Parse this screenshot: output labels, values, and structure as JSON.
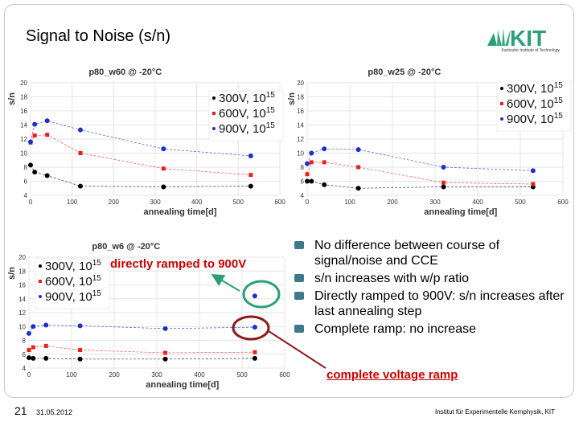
{
  "slide": {
    "title": "Signal to Noise (s/n)",
    "logo_text": "KIT",
    "logo_subtitle": "Karlsruhe Institute of Technology",
    "slide_number": "21",
    "date": "31.05.2012",
    "institute": "Institut für Experimentelle Kernphysik, KIT",
    "ramp_note": "directly ramped to 900V",
    "complete_note": "complete voltage ramp",
    "bullets": [
      "No difference between course of signal/noise and CCE",
      "s/n increases with w/p ratio",
      "Directly ramped to 900V: s/n increases after last annealing step",
      "Complete ramp: no increase"
    ]
  },
  "colors": {
    "accent": "#3c7a89",
    "highlight": "#cc0000",
    "circle_green": "#2aa079",
    "circle_darkred": "#8b1a1a",
    "series_300": "#000000",
    "series_600": "#e8201a",
    "series_900": "#1c2fc8"
  },
  "chart_data": [
    {
      "type": "line",
      "title": "p80_w60 @ -20°C",
      "xlabel": "annealing time[d]",
      "ylabel": "s/n",
      "xlim": [
        0,
        600
      ],
      "ylim": [
        4,
        20
      ],
      "xticks": [
        0,
        100,
        200,
        300,
        400,
        500,
        600
      ],
      "yticks": [
        4,
        6,
        8,
        10,
        12,
        14,
        16,
        18,
        20
      ],
      "legend_position": "top-right",
      "series": [
        {
          "name": "300V, 10",
          "sup": "15",
          "color_key": "series_300",
          "x": [
            0,
            10,
            40,
            120,
            320,
            530
          ],
          "y": [
            8.3,
            7.3,
            6.8,
            5.3,
            5.2,
            5.3
          ]
        },
        {
          "name": "600V, 10",
          "sup": "15",
          "color_key": "series_600",
          "x": [
            0,
            10,
            40,
            120,
            320,
            530
          ],
          "y": [
            11.5,
            12.5,
            12.6,
            10.0,
            7.8,
            6.9
          ]
        },
        {
          "name": "900V, 10",
          "sup": "15",
          "color_key": "series_900",
          "x": [
            0,
            10,
            40,
            120,
            320,
            530
          ],
          "y": [
            11.6,
            14.1,
            14.6,
            13.3,
            10.6,
            9.6
          ]
        }
      ]
    },
    {
      "type": "line",
      "title": "p80_w25 @ -20°C",
      "xlabel": "annealing time[d]",
      "ylabel": "s/n",
      "xlim": [
        0,
        600
      ],
      "ylim": [
        4,
        20
      ],
      "xticks": [
        0,
        100,
        200,
        300,
        400,
        500,
        600
      ],
      "yticks": [
        4,
        6,
        8,
        10,
        12,
        14,
        16,
        18,
        20
      ],
      "legend_position": "top-right",
      "series": [
        {
          "name": "300V, 10",
          "sup": "15",
          "color_key": "series_300",
          "x": [
            0,
            10,
            40,
            120,
            320,
            530
          ],
          "y": [
            6.0,
            6.0,
            5.5,
            5.0,
            5.2,
            5.2
          ]
        },
        {
          "name": "600V, 10",
          "sup": "15",
          "color_key": "series_600",
          "x": [
            0,
            10,
            40,
            120,
            320,
            530
          ],
          "y": [
            7.0,
            8.7,
            8.7,
            8.0,
            5.8,
            5.6
          ]
        },
        {
          "name": "900V, 10",
          "sup": "15",
          "color_key": "series_900",
          "x": [
            0,
            10,
            40,
            120,
            320,
            530
          ],
          "y": [
            8.5,
            10.0,
            10.6,
            10.5,
            8.0,
            7.5
          ]
        }
      ]
    },
    {
      "type": "line",
      "title": "p80_w6 @ -20°C",
      "xlabel": "annealing time[d]",
      "ylabel": "s/n",
      "xlim": [
        0,
        600
      ],
      "ylim": [
        4,
        20
      ],
      "xticks": [
        0,
        100,
        200,
        300,
        400,
        500,
        600
      ],
      "yticks": [
        4,
        6,
        8,
        10,
        12,
        14,
        16,
        18,
        20
      ],
      "legend_position": "top-left",
      "series": [
        {
          "name": "300V, 10",
          "sup": "15",
          "color_key": "series_300",
          "x": [
            0,
            10,
            40,
            120,
            320,
            530
          ],
          "y": [
            5.5,
            5.4,
            5.4,
            5.3,
            5.3,
            5.4
          ]
        },
        {
          "name": "600V, 10",
          "sup": "15",
          "color_key": "series_600",
          "x": [
            0,
            10,
            40,
            120,
            320,
            530
          ],
          "y": [
            6.6,
            7.0,
            7.2,
            6.6,
            6.2,
            6.3
          ]
        },
        {
          "name": "900V, 10",
          "sup": "15",
          "color_key": "series_900",
          "x": [
            0,
            10,
            40,
            120,
            320,
            530
          ],
          "y": [
            9.0,
            10.0,
            10.2,
            10.1,
            9.7,
            9.9
          ]
        }
      ],
      "extra_points": [
        {
          "x": 530,
          "y": 14.4,
          "color_key": "series_900"
        }
      ]
    }
  ]
}
